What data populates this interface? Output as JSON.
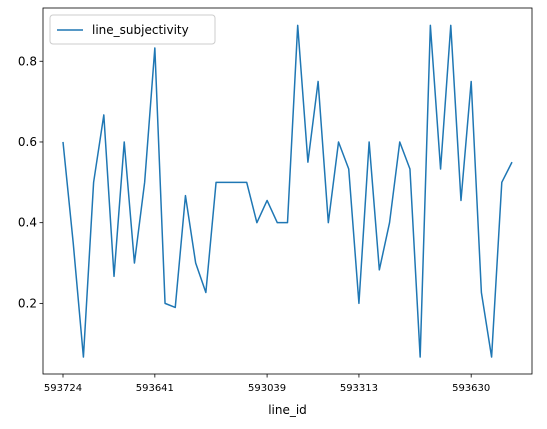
{
  "chart_data": {
    "type": "line",
    "xlabel": "line_id",
    "ylabel": "",
    "ylim": [
      0.025,
      0.932
    ],
    "x_tick_labels": [
      "593724",
      "593641",
      "593039",
      "593313",
      "593630"
    ],
    "x_tick_positions": [
      0,
      9,
      20,
      29,
      40
    ],
    "y_ticks": [
      0.2,
      0.4,
      0.6,
      0.8
    ],
    "y_tick_labels": [
      "0.2",
      "0.4",
      "0.6",
      "0.8"
    ],
    "grid": false,
    "legend_position": "top-left",
    "series": [
      {
        "name": "line_subjectivity",
        "color": "#1f77b4",
        "values": [
          0.6,
          0.35,
          0.067,
          0.5,
          0.667,
          0.267,
          0.6,
          0.3,
          0.5,
          0.833,
          0.2,
          0.19,
          0.467,
          0.3,
          0.227,
          0.5,
          0.5,
          0.5,
          0.5,
          0.4,
          0.455,
          0.4,
          0.4,
          0.889,
          0.55,
          0.75,
          0.4,
          0.6,
          0.533,
          0.2,
          0.6,
          0.283,
          0.4,
          0.6,
          0.533,
          0.067,
          0.889,
          0.533,
          0.889,
          0.455,
          0.75,
          0.227,
          0.067,
          0.5,
          0.55
        ]
      }
    ]
  }
}
